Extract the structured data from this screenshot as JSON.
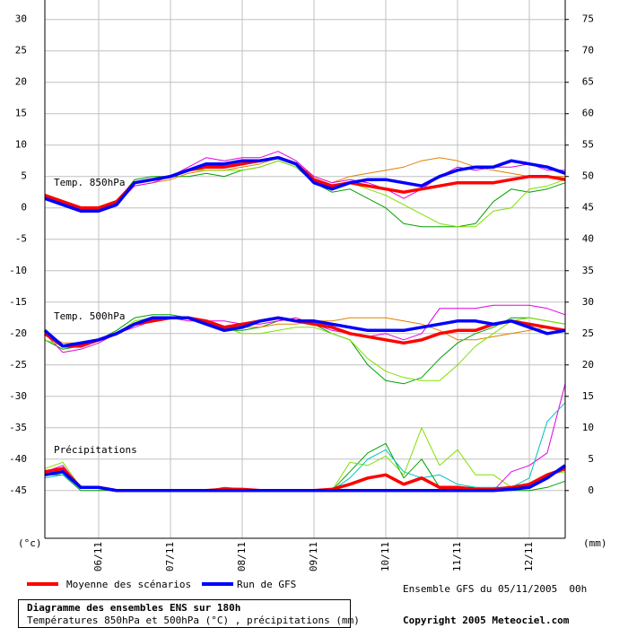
{
  "chart_data": {
    "type": "line",
    "title": "Diagramme des ensembles ENS sur 180h",
    "subtitle": "Températures 850hPa et 500hPa (°C) , précipitations (mm)",
    "annotations": [
      "Temp. 850hPa",
      "Temp. 500hPa",
      "Précipitations",
      "Ensemble GFS du 05/11/2005  00h",
      "Copyright 2005 Meteociel.com"
    ],
    "y_label": "(°c)",
    "y2_label": "(mm)",
    "x": [
      0,
      6,
      12,
      18,
      24,
      30,
      36,
      42,
      48,
      54,
      60,
      66,
      72,
      78,
      84,
      90,
      96,
      102,
      108,
      114,
      120,
      126,
      132,
      138,
      144,
      150,
      156,
      162,
      168,
      174
    ],
    "xlim": [
      0,
      174
    ],
    "xticks": [
      {
        "value": 18,
        "label": "06/11"
      },
      {
        "value": 42,
        "label": "07/11"
      },
      {
        "value": 66,
        "label": "08/11"
      },
      {
        "value": 90,
        "label": "09/11"
      },
      {
        "value": 114,
        "label": "10/11"
      },
      {
        "value": 138,
        "label": "11/11"
      },
      {
        "value": 162,
        "label": "12/11"
      }
    ],
    "ylim": [
      -52.6,
      33.1
    ],
    "yticks": [
      30,
      25,
      20,
      15,
      10,
      5,
      0,
      -5,
      -10,
      -15,
      -20,
      -25,
      -30,
      -35,
      -40,
      -45
    ],
    "y2lim": [
      -7.6,
      78.1
    ],
    "y2ticks": [
      75,
      70,
      65,
      60,
      55,
      50,
      45,
      40,
      35,
      30,
      25,
      20,
      15,
      10,
      5,
      0
    ],
    "grid": true,
    "series": [
      {
        "color": "#00a000",
        "values": [
          1.5,
          0.5,
          0,
          0,
          1,
          4.5,
          5,
          5,
          5,
          5.5,
          5,
          6,
          6.5,
          7.5,
          6.5,
          4,
          2.5,
          3,
          1.5,
          0,
          -2.5,
          -3,
          -3,
          -3,
          -2.5,
          1,
          3,
          2.5,
          3,
          4
        ]
      },
      {
        "color": "#e08000",
        "values": [
          2,
          1,
          0,
          0,
          1,
          3.5,
          4,
          4.5,
          5.5,
          6,
          6,
          6.5,
          7,
          8,
          7,
          5,
          4,
          5,
          5.5,
          6,
          6.5,
          7.5,
          8,
          7.5,
          6.5,
          6,
          5.5,
          5,
          5,
          5
        ]
      },
      {
        "color": "#e000e0",
        "values": [
          2,
          1,
          0,
          -0.5,
          0.5,
          3.5,
          4,
          5,
          6.5,
          8,
          7.5,
          8,
          8,
          9,
          7.5,
          5,
          4,
          4.5,
          4,
          3,
          1.5,
          3,
          5,
          6.5,
          6,
          6.5,
          6.5,
          7,
          6,
          6
        ]
      },
      {
        "color": "#80e000",
        "values": [
          2,
          1,
          0,
          0,
          1,
          4,
          4.5,
          5,
          6,
          6,
          6,
          6,
          6.5,
          7.5,
          6.5,
          4.5,
          3.5,
          4,
          3,
          2,
          0.5,
          -1,
          -2.5,
          -3,
          -3,
          -0.5,
          0,
          3,
          3.5,
          4.5
        ]
      },
      {
        "color": "#00a000",
        "values": [
          -21,
          -22.5,
          -22,
          -21,
          -19.5,
          -17.5,
          -17,
          -17,
          -17.5,
          -18,
          -19.5,
          -19.5,
          -19,
          -18,
          -17.5,
          -18.5,
          -20,
          -21,
          -25,
          -27.5,
          -28,
          -27,
          -24,
          -21.5,
          -20,
          -19,
          -17.5,
          -17.5,
          -18,
          -18.5
        ]
      },
      {
        "color": "#e08000",
        "values": [
          -20,
          -21.5,
          -21.5,
          -21,
          -20,
          -18.5,
          -18,
          -17.5,
          -17.5,
          -18,
          -19,
          -19,
          -19,
          -18.5,
          -18.5,
          -18,
          -18,
          -17.5,
          -17.5,
          -17.5,
          -18,
          -18.5,
          -19.5,
          -21,
          -21,
          -20.5,
          -20,
          -19.5,
          -19,
          -19.5
        ]
      },
      {
        "color": "#e000e0",
        "values": [
          -20,
          -23,
          -22.5,
          -21.5,
          -20,
          -19,
          -18,
          -17.5,
          -18,
          -18,
          -18,
          -18.5,
          -18.5,
          -18,
          -17.5,
          -18.5,
          -19.5,
          -20,
          -20.5,
          -20,
          -21,
          -20,
          -16,
          -16,
          -16,
          -15.5,
          -15.5,
          -15.5,
          -16,
          -17
        ]
      },
      {
        "color": "#80e000",
        "values": [
          -21,
          -22,
          -22,
          -21,
          -20,
          -18,
          -17.5,
          -17.5,
          -17.5,
          -18,
          -19,
          -20,
          -20,
          -19.5,
          -19,
          -19,
          -20,
          -21,
          -24,
          -26,
          -27,
          -27.5,
          -27.5,
          -25,
          -22,
          -20,
          -18,
          -17.5,
          -18,
          -18.5
        ]
      },
      {
        "color": "#00a000",
        "axis": "y2",
        "values": [
          2.5,
          2.5,
          0,
          0,
          0,
          0,
          0,
          0,
          0,
          0,
          0.5,
          0.3,
          0,
          0,
          0,
          0,
          0,
          3,
          6,
          7.5,
          2,
          5,
          0.5,
          0.5,
          0.5,
          0,
          0,
          0,
          0.5,
          1.5
        ]
      },
      {
        "color": "#80e000",
        "axis": "y2",
        "values": [
          3.5,
          4.5,
          0.5,
          0.5,
          0,
          0,
          0,
          0,
          0,
          0,
          0,
          0,
          0,
          0,
          0,
          0,
          0,
          4.5,
          4,
          5.5,
          2.5,
          10,
          4,
          6.5,
          2.5,
          2.5,
          0.5,
          1,
          2.5,
          3
        ]
      },
      {
        "color": "#e000e0",
        "axis": "y2",
        "values": [
          3,
          4,
          0.5,
          0.5,
          0,
          0,
          0,
          0,
          0,
          0,
          0,
          0,
          0,
          0,
          0,
          0,
          0,
          0,
          0,
          0,
          0,
          0,
          0,
          0,
          0,
          0,
          3,
          4,
          6,
          17
        ]
      },
      {
        "color": "#00c0c0",
        "axis": "y2",
        "values": [
          2,
          2.5,
          0.5,
          0.5,
          0,
          0,
          0,
          0,
          0,
          0,
          0,
          0,
          0,
          0,
          0,
          0,
          0,
          2,
          5,
          6.5,
          3,
          2,
          2.5,
          1,
          0.5,
          0.5,
          0.5,
          2,
          11,
          14
        ]
      },
      {
        "name": "Moyenne des scénarios",
        "color": "#ff0000",
        "values": [
          2,
          1,
          0,
          0,
          1,
          4,
          4.5,
          5,
          6,
          6.5,
          6.5,
          7,
          7.5,
          8,
          7,
          4.5,
          3.5,
          4,
          3.5,
          3,
          2.5,
          3,
          3.5,
          4,
          4,
          4,
          4.5,
          5,
          5,
          4.5
        ]
      },
      {
        "name": "Run de GFS",
        "color": "#0000ff",
        "values": [
          1.5,
          0.5,
          -0.5,
          -0.5,
          0.5,
          4,
          4.5,
          5,
          6,
          7,
          7,
          7.5,
          7.5,
          8,
          7,
          4,
          3,
          4,
          4.5,
          4.5,
          4,
          3.5,
          5,
          6,
          6.5,
          6.5,
          7.5,
          7,
          6.5,
          5.5
        ]
      },
      {
        "color": "#ff0000",
        "values": [
          -20,
          -22,
          -22,
          -21,
          -20,
          -18.5,
          -18,
          -17.5,
          -17.5,
          -18,
          -19,
          -18.5,
          -18,
          -17.5,
          -18,
          -18.5,
          -19,
          -20,
          -20.5,
          -21,
          -21.5,
          -21,
          -20,
          -19.5,
          -19.5,
          -18.5,
          -18,
          -18.5,
          -19,
          -19.5
        ]
      },
      {
        "color": "#0000ff",
        "values": [
          -19.5,
          -22,
          -21.5,
          -21,
          -20,
          -18.5,
          -17.5,
          -17.5,
          -17.5,
          -18.5,
          -19.5,
          -19,
          -18,
          -17.5,
          -18,
          -18,
          -18.5,
          -19,
          -19.5,
          -19.5,
          -19.5,
          -19,
          -18.5,
          -18,
          -18,
          -18.5,
          -18,
          -19,
          -20,
          -19.5
        ]
      },
      {
        "color": "#ff0000",
        "axis": "y2",
        "values": [
          3,
          3.5,
          0.5,
          0.5,
          0,
          0,
          0,
          0,
          0,
          0,
          0.2,
          0.2,
          0,
          0,
          0,
          0,
          0.2,
          1,
          2,
          2.5,
          1,
          2,
          0.5,
          0.5,
          0.2,
          0.2,
          0.5,
          1,
          2.5,
          3.5
        ]
      },
      {
        "color": "#0000ff",
        "axis": "y2",
        "values": [
          2.5,
          3,
          0.5,
          0.5,
          0,
          0,
          0,
          0,
          0,
          0,
          0,
          0,
          0,
          0,
          0,
          0,
          0,
          0,
          0,
          0,
          0,
          0,
          0,
          0,
          0,
          0,
          0.2,
          0.5,
          2,
          4
        ]
      }
    ]
  }
}
